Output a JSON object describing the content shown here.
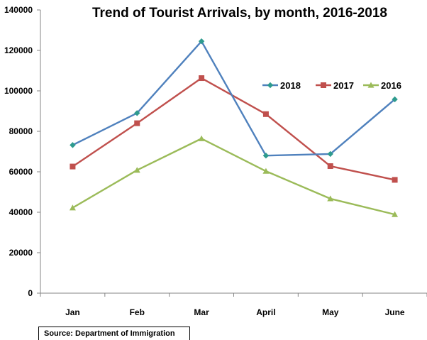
{
  "chart_data": {
    "type": "line",
    "title": "Trend of Tourist Arrivals, by month, 2016-2018",
    "categories": [
      "Jan",
      "Feb",
      "Mar",
      "April",
      "May",
      "June"
    ],
    "yticks": [
      0,
      20000,
      40000,
      60000,
      80000,
      100000,
      120000,
      140000
    ],
    "ylim": [
      0,
      140000
    ],
    "xlabel": "",
    "ylabel": "",
    "grid": false,
    "legend_position": "top-right",
    "series": [
      {
        "name": "2018",
        "color": "#4F81BD",
        "marker_color": "#2E9B8E",
        "marker": "diamond",
        "values": [
          73200,
          89000,
          124500,
          68000,
          68800,
          95800
        ]
      },
      {
        "name": "2017",
        "color": "#C0504D",
        "marker_color": "#C0504D",
        "marker": "square",
        "values": [
          62600,
          84000,
          106300,
          88500,
          62800,
          56000
        ]
      },
      {
        "name": "2016",
        "color": "#9BBB59",
        "marker_color": "#9BBB59",
        "marker": "triangle",
        "values": [
          42200,
          60800,
          76400,
          60300,
          46700,
          38900
        ]
      }
    ]
  },
  "source": "Source: Department of Immigration"
}
